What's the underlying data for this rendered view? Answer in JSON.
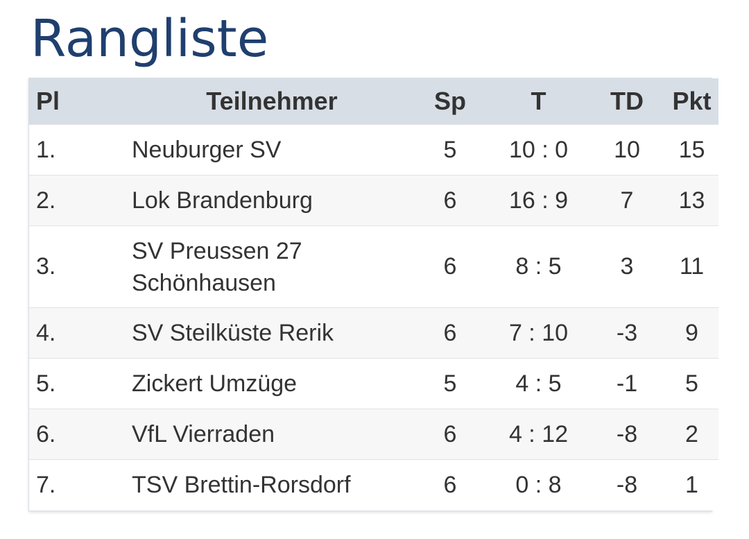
{
  "title": "Rangliste",
  "table": {
    "headers": {
      "pl": "Pl",
      "name": "Teilnehmer",
      "sp": "Sp",
      "t": "T",
      "td": "TD",
      "pkt": "Pkt"
    },
    "rows": [
      {
        "pl": "1.",
        "name": "Neuburger SV",
        "sp": "5",
        "t": "10 : 0",
        "td": "10",
        "pkt": "15"
      },
      {
        "pl": "2.",
        "name": "Lok Brandenburg",
        "sp": "6",
        "t": "16 : 9",
        "td": "7",
        "pkt": "13"
      },
      {
        "pl": "3.",
        "name": "SV Preussen 27 Schönhausen",
        "sp": "6",
        "t": "8 : 5",
        "td": "3",
        "pkt": "11"
      },
      {
        "pl": "4.",
        "name": "SV Steilküste Rerik",
        "sp": "6",
        "t": "7 : 10",
        "td": "-3",
        "pkt": "9"
      },
      {
        "pl": "5.",
        "name": "Zickert Umzüge",
        "sp": "5",
        "t": "4 : 5",
        "td": "-1",
        "pkt": "5"
      },
      {
        "pl": "6.",
        "name": "VfL Vierraden",
        "sp": "6",
        "t": "4 : 12",
        "td": "-8",
        "pkt": "2"
      },
      {
        "pl": "7.",
        "name": "TSV Brettin-Rorsdorf",
        "sp": "6",
        "t": "0 : 8",
        "td": "-8",
        "pkt": "1"
      }
    ]
  },
  "colors": {
    "title": "#1f3f6e",
    "header_bg": "#d8dee6",
    "text": "#333333",
    "row_alt_bg": "#f7f7f7"
  }
}
